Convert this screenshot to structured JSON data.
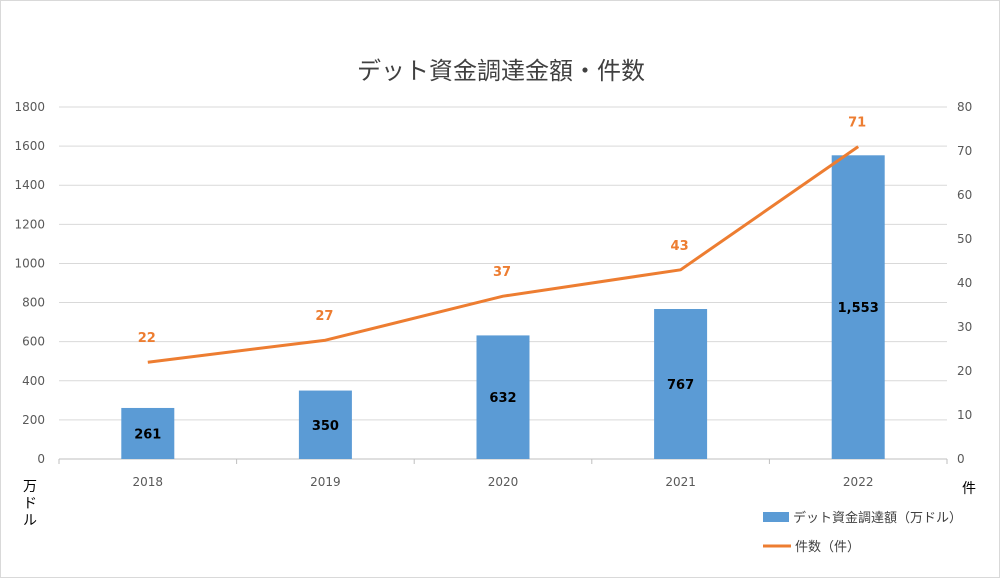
{
  "chart_data": {
    "type": "bar",
    "title": "デット資金調達金額・件数",
    "categories": [
      "2018",
      "2019",
      "2020",
      "2021",
      "2022"
    ],
    "series": [
      {
        "name": "デット資金調達額（万ドル）",
        "type": "bar",
        "axis": "left",
        "values": [
          261,
          350,
          632,
          767,
          1553
        ],
        "labels": [
          "261",
          "350",
          "632",
          "767",
          "1,553"
        ],
        "color": "#5B9BD5"
      },
      {
        "name": "件数（件）",
        "type": "line",
        "axis": "right",
        "values": [
          22,
          27,
          37,
          43,
          71
        ],
        "labels": [
          "22",
          "27",
          "37",
          "43",
          "71"
        ],
        "color": "#ED7D31"
      }
    ],
    "y_left": {
      "label": "万ドル",
      "ylim": [
        0,
        1800
      ],
      "ticks": [
        0,
        200,
        400,
        600,
        800,
        1000,
        1200,
        1400,
        1600,
        1800
      ]
    },
    "y_right": {
      "label": "件",
      "ylim": [
        0,
        80
      ],
      "ticks": [
        0,
        10,
        20,
        30,
        40,
        50,
        60,
        70,
        80
      ]
    },
    "grid": true,
    "legend_position": "bottom-right"
  }
}
